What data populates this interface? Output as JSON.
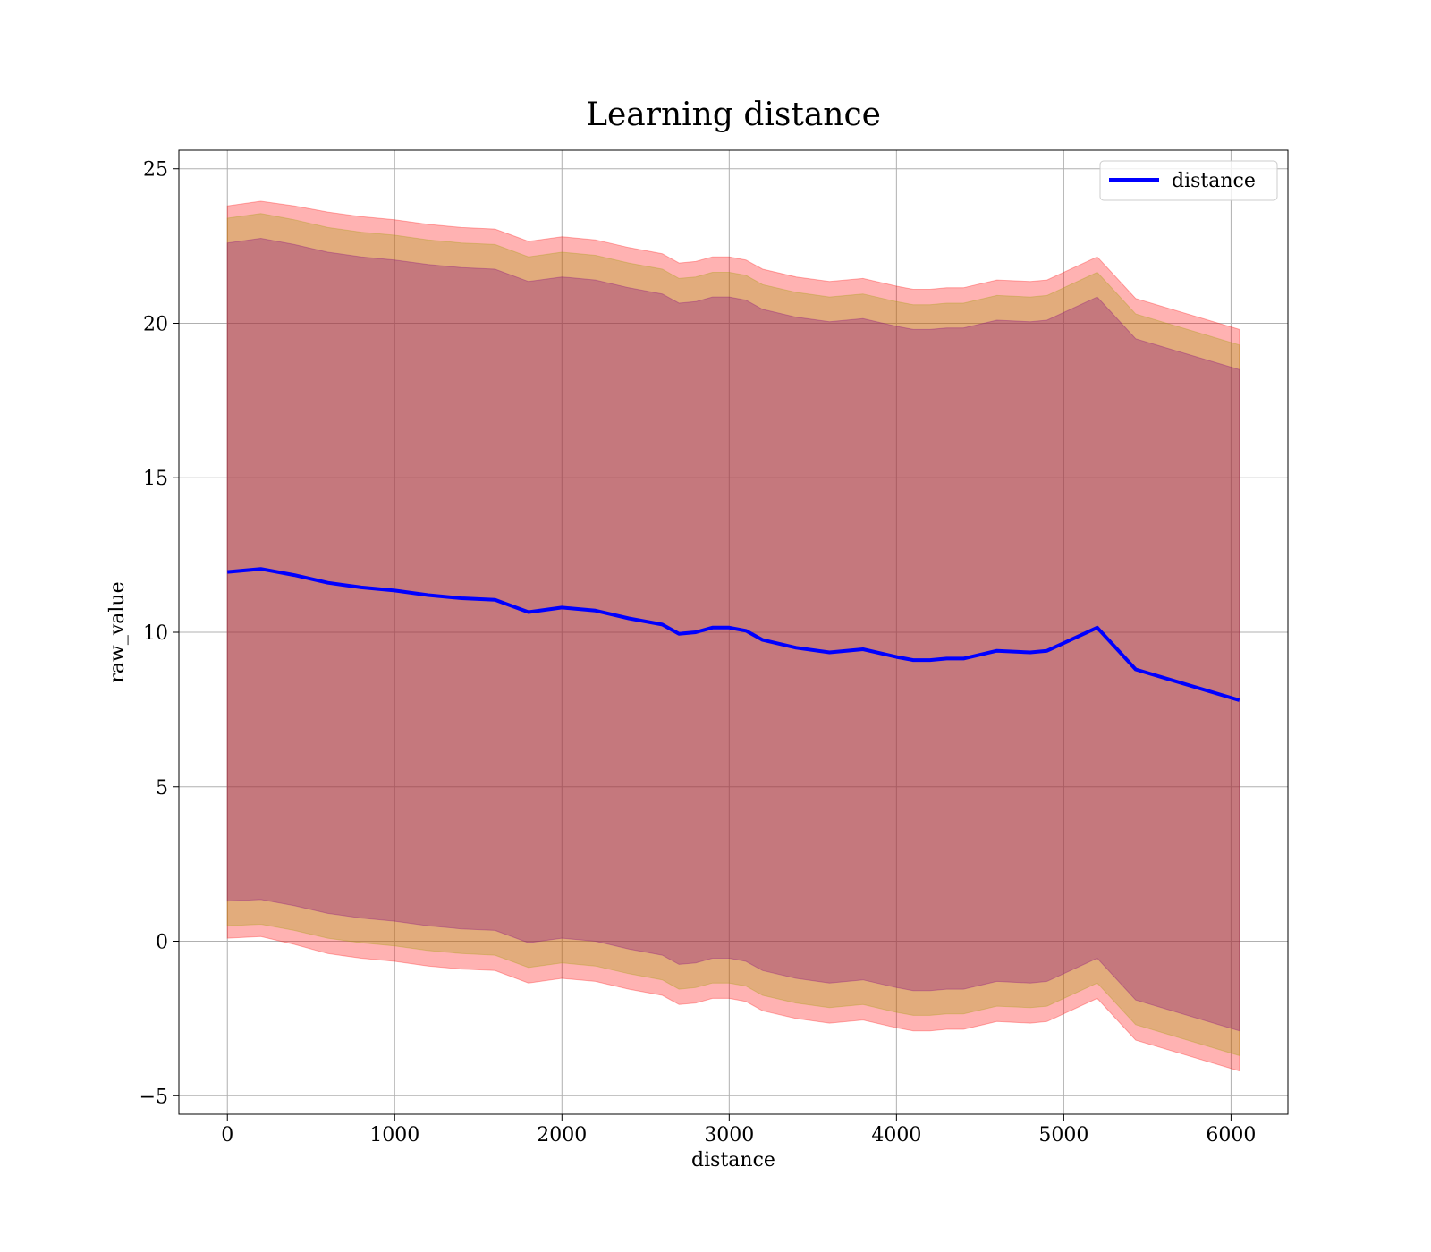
{
  "chart_data": {
    "type": "area",
    "title": "Learning distance",
    "xlabel": "distance",
    "ylabel": "raw_value",
    "xlim": [
      -290,
      6340
    ],
    "ylim": [
      -5.6,
      25.6
    ],
    "x_ticks": [
      0,
      1000,
      2000,
      3000,
      4000,
      5000,
      6000
    ],
    "x_tick_labels": [
      "0",
      "1000",
      "2000",
      "3000",
      "4000",
      "5000",
      "6000"
    ],
    "y_ticks": [
      -5,
      0,
      5,
      10,
      15,
      20,
      25
    ],
    "y_tick_labels": [
      "−5",
      "0",
      "5",
      "10",
      "15",
      "20",
      "25"
    ],
    "grid": true,
    "legend": {
      "placement": "top-right",
      "entries": [
        "distance"
      ]
    },
    "colors": {
      "line": "#0000ff",
      "band_outer": "#ff0000",
      "band_middle": "#a0a000",
      "band_inner": "#800080"
    },
    "x": [
      0,
      200,
      400,
      600,
      800,
      1000,
      1200,
      1400,
      1600,
      1800,
      2000,
      2200,
      2400,
      2600,
      2700,
      2800,
      2900,
      3000,
      3100,
      3200,
      3400,
      3600,
      3800,
      4000,
      4100,
      4200,
      4300,
      4400,
      4600,
      4800,
      4900,
      5200,
      5430,
      6050
    ],
    "series": [
      {
        "name": "distance",
        "values": [
          11.95,
          12.05,
          11.85,
          11.6,
          11.45,
          11.35,
          11.2,
          11.1,
          11.05,
          10.65,
          10.8,
          10.7,
          10.45,
          10.25,
          9.95,
          10.0,
          10.15,
          10.15,
          10.05,
          9.75,
          9.5,
          9.35,
          9.45,
          9.2,
          9.1,
          9.1,
          9.15,
          9.15,
          9.4,
          9.35,
          9.4,
          10.15,
          8.8,
          7.8
        ]
      }
    ],
    "bands": [
      {
        "upper": [
          23.8,
          23.95,
          23.8,
          23.6,
          23.45,
          23.35,
          23.2,
          23.1,
          23.05,
          22.65,
          22.8,
          22.7,
          22.45,
          22.25,
          21.95,
          22.0,
          22.15,
          22.15,
          22.05,
          21.75,
          21.5,
          21.35,
          21.45,
          21.2,
          21.1,
          21.1,
          21.15,
          21.15,
          21.4,
          21.35,
          21.4,
          22.15,
          20.8,
          19.8
        ],
        "lower": [
          0.1,
          0.15,
          -0.1,
          -0.4,
          -0.55,
          -0.65,
          -0.8,
          -0.9,
          -0.95,
          -1.35,
          -1.2,
          -1.3,
          -1.55,
          -1.75,
          -2.05,
          -2.0,
          -1.85,
          -1.85,
          -1.95,
          -2.25,
          -2.5,
          -2.65,
          -2.55,
          -2.8,
          -2.9,
          -2.9,
          -2.85,
          -2.85,
          -2.6,
          -2.65,
          -2.6,
          -1.85,
          -3.2,
          -4.2
        ]
      },
      {
        "upper": [
          23.4,
          23.55,
          23.35,
          23.1,
          22.95,
          22.85,
          22.7,
          22.6,
          22.55,
          22.15,
          22.3,
          22.2,
          21.95,
          21.75,
          21.45,
          21.5,
          21.65,
          21.65,
          21.55,
          21.25,
          21.0,
          20.85,
          20.95,
          20.7,
          20.6,
          20.6,
          20.65,
          20.65,
          20.9,
          20.85,
          20.9,
          21.65,
          20.3,
          19.3
        ],
        "lower": [
          0.5,
          0.55,
          0.35,
          0.1,
          -0.05,
          -0.15,
          -0.3,
          -0.4,
          -0.45,
          -0.85,
          -0.7,
          -0.8,
          -1.05,
          -1.25,
          -1.55,
          -1.5,
          -1.35,
          -1.35,
          -1.45,
          -1.75,
          -2.0,
          -2.15,
          -2.05,
          -2.3,
          -2.4,
          -2.4,
          -2.35,
          -2.35,
          -2.1,
          -2.15,
          -2.1,
          -1.35,
          -2.7,
          -3.7
        ]
      },
      {
        "upper": [
          22.6,
          22.75,
          22.55,
          22.3,
          22.15,
          22.05,
          21.9,
          21.8,
          21.75,
          21.35,
          21.5,
          21.4,
          21.15,
          20.95,
          20.65,
          20.7,
          20.85,
          20.85,
          20.75,
          20.45,
          20.2,
          20.05,
          20.15,
          19.9,
          19.8,
          19.8,
          19.85,
          19.85,
          20.1,
          20.05,
          20.1,
          20.85,
          19.5,
          18.5
        ],
        "lower": [
          1.3,
          1.35,
          1.15,
          0.9,
          0.75,
          0.65,
          0.5,
          0.4,
          0.35,
          -0.05,
          0.1,
          0.0,
          -0.25,
          -0.45,
          -0.75,
          -0.7,
          -0.55,
          -0.55,
          -0.65,
          -0.95,
          -1.2,
          -1.35,
          -1.25,
          -1.5,
          -1.6,
          -1.6,
          -1.55,
          -1.55,
          -1.3,
          -1.35,
          -1.3,
          -0.55,
          -1.9,
          -2.9
        ]
      }
    ]
  }
}
